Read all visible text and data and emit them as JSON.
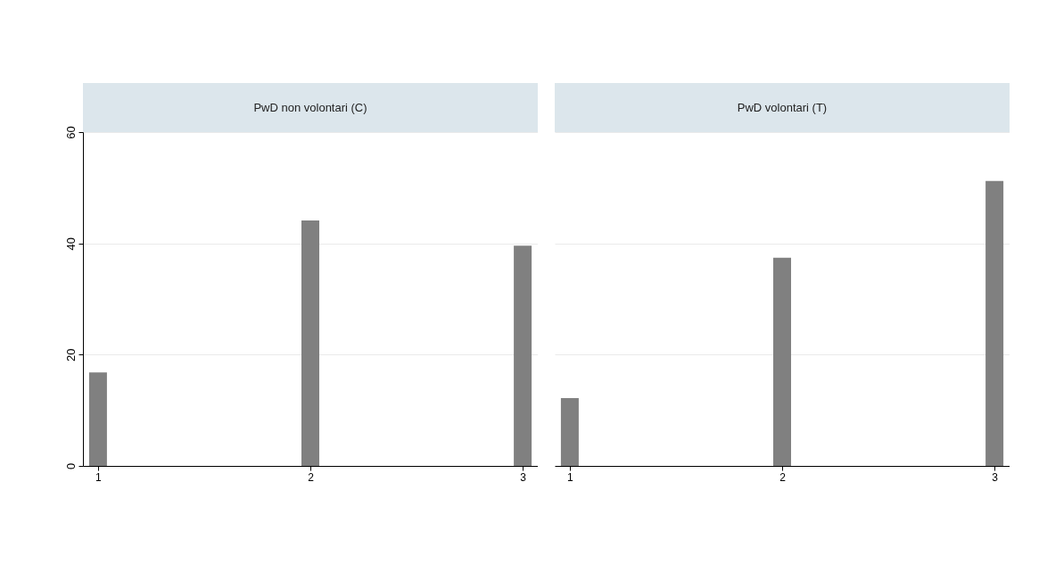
{
  "chart_data": [
    {
      "type": "bar",
      "title": "PwD non volontari (C)",
      "x": [
        1,
        2,
        3
      ],
      "values": [
        16.8,
        44.1,
        39.6
      ],
      "color": "#808080",
      "xlim": [
        0.95,
        3.05
      ],
      "xticks": [
        1,
        2,
        3
      ],
      "ylim": [
        0,
        60
      ],
      "yticks": [
        0,
        20,
        40,
        60
      ],
      "grid": "y"
    },
    {
      "type": "bar",
      "title": "PwD volontari (T)",
      "x": [
        1,
        2,
        3
      ],
      "values": [
        12.2,
        37.4,
        51.2
      ],
      "color": "#808080",
      "xlim": [
        0.95,
        3.05
      ],
      "xticks": [
        1,
        2,
        3
      ],
      "ylim": [
        0,
        60
      ],
      "yticks": [
        0,
        20,
        40,
        60
      ],
      "grid": "y",
      "tick_labels": "x"
    }
  ]
}
